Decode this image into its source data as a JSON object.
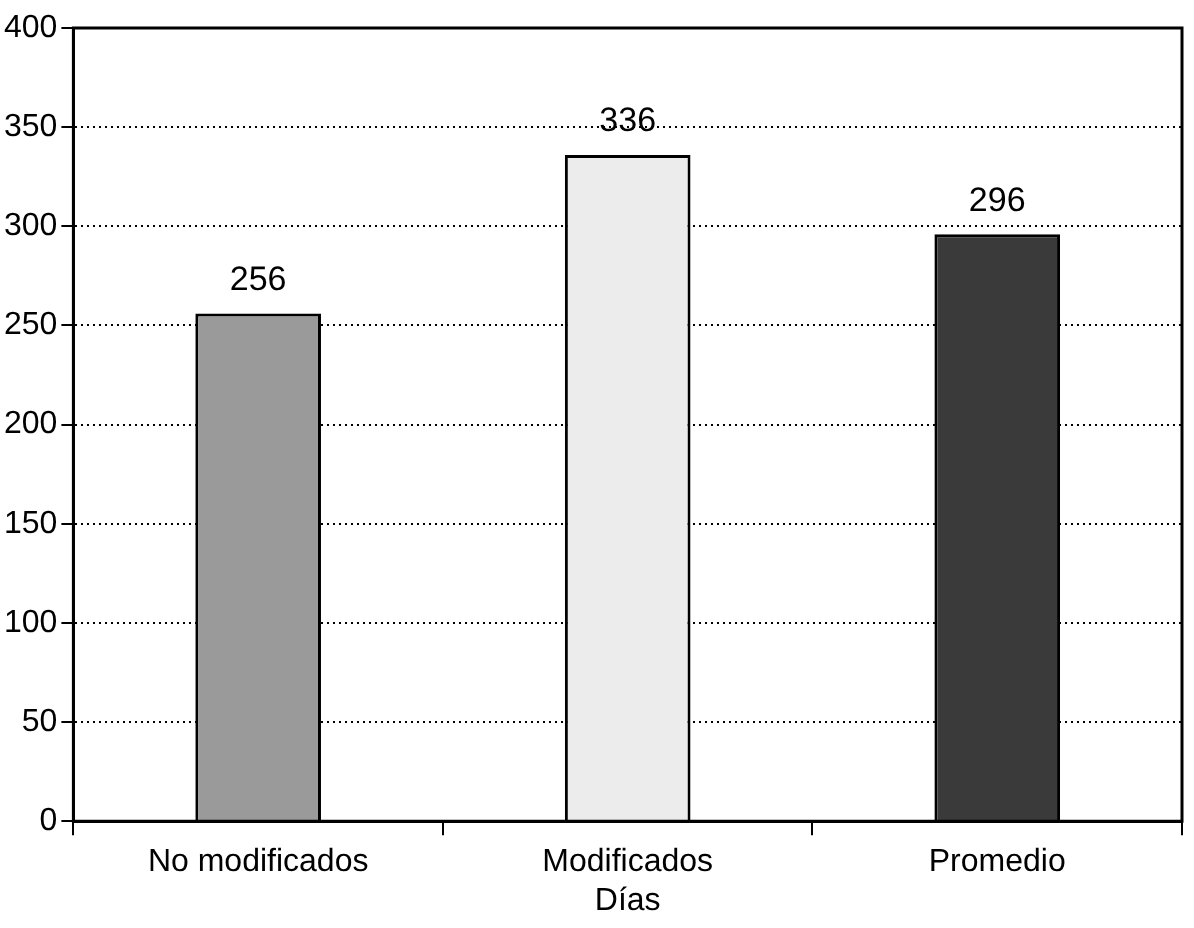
{
  "chart_data": {
    "type": "bar",
    "xlabel": "Días",
    "categories": [
      "No modificados",
      "Modificados",
      "Promedio"
    ],
    "values": [
      256,
      336,
      296
    ],
    "colors": [
      "#9a9a9a",
      "#ececec",
      "#3a3a3a"
    ],
    "ylim": [
      0,
      400
    ],
    "yticks": [
      0,
      50,
      100,
      150,
      200,
      250,
      300,
      350,
      400
    ],
    "grid": "y",
    "data_labels": true
  }
}
